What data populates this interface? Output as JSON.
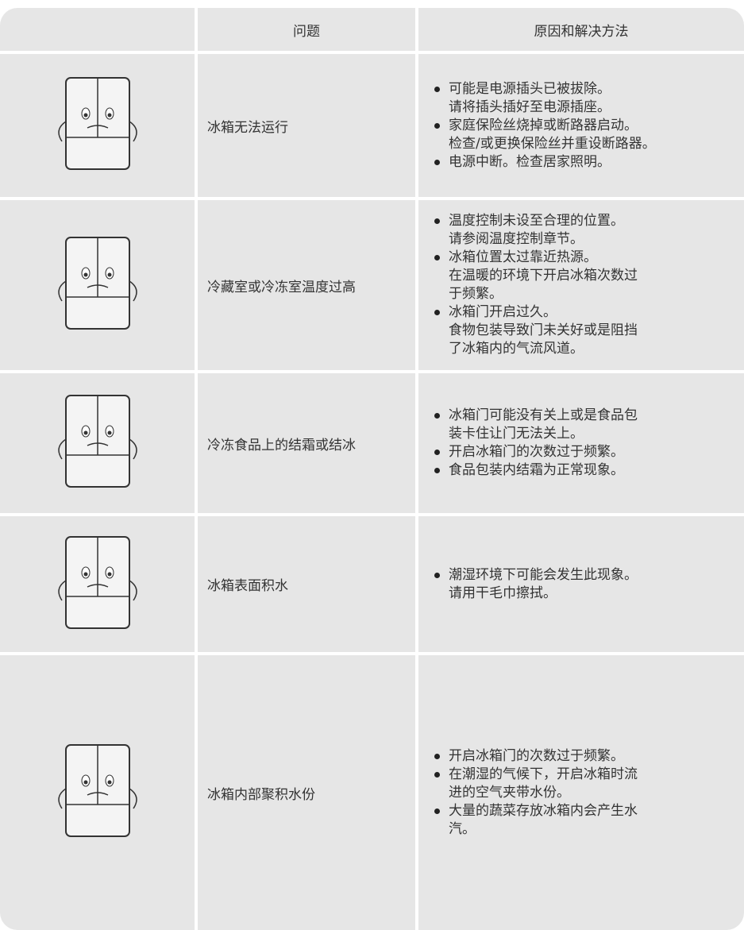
{
  "table": {
    "header": [
      "问题",
      "原因和解决方法"
    ],
    "rows": [
      {
        "problem": "冰箱无法运行",
        "solutions": [
          [
            "可能是电源插头已被拔除。",
            "请将插头插好至电源插座。"
          ],
          [
            "家庭保险丝烧掉或断路器启动。",
            "检查/或更换保险丝并重设断路器。"
          ],
          [
            "电源中断。检查居家照明。"
          ]
        ]
      },
      {
        "problem": "冷藏室或冷冻室温度过高",
        "solutions": [
          [
            "温度控制未设至合理的位置。",
            "请参阅温度控制章节。"
          ],
          [
            "冰箱位置太过靠近热源。",
            "在温暖的环境下开启冰箱次数过",
            "于频繁。"
          ],
          [
            "冰箱门开启过久。",
            "食物包装导致门未关好或是阻挡",
            "了冰箱内的气流风道。"
          ]
        ]
      },
      {
        "problem": "冷冻食品上的结霜或结冰",
        "solutions": [
          [
            "冰箱门可能没有关上或是食品包",
            "装卡住让门无法关上。"
          ],
          [
            "开启冰箱门的次数过于频繁。"
          ],
          [
            "食品包装内结霜为正常现象。"
          ]
        ]
      },
      {
        "problem": "冰箱表面积水",
        "solutions": [
          [
            "潮湿环境下可能会发生此现象。",
            "请用干毛巾擦拭。"
          ]
        ]
      },
      {
        "problem": "冰箱内部聚积水份",
        "solutions": [
          [
            "开启冰箱门的次数过于频繁。"
          ],
          [
            "在潮湿的气候下，开启冰箱时流",
            "进的空气夹带水份。"
          ],
          [
            "大量的蔬菜存放冰箱内会产生水",
            "汽。"
          ]
        ]
      }
    ]
  }
}
